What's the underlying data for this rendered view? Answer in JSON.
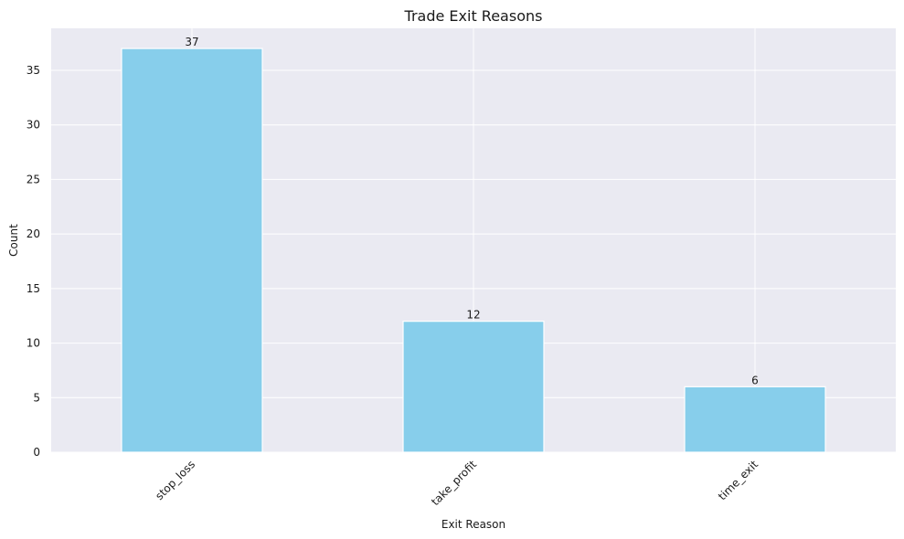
{
  "chart_data": {
    "type": "bar",
    "title": "Trade Exit Reasons",
    "xlabel": "Exit Reason",
    "ylabel": "Count",
    "categories": [
      "stop_loss",
      "take_profit",
      "time_exit"
    ],
    "values": [
      37,
      12,
      6
    ],
    "ylim": [
      0,
      38.85
    ],
    "yticks": [
      0,
      5,
      10,
      15,
      20,
      25,
      30,
      35
    ],
    "grid": true,
    "legend": "none",
    "colors": {
      "bar": "#87ceeb",
      "plot_background": "#eaeaf2",
      "grid": "#ffffff"
    }
  }
}
